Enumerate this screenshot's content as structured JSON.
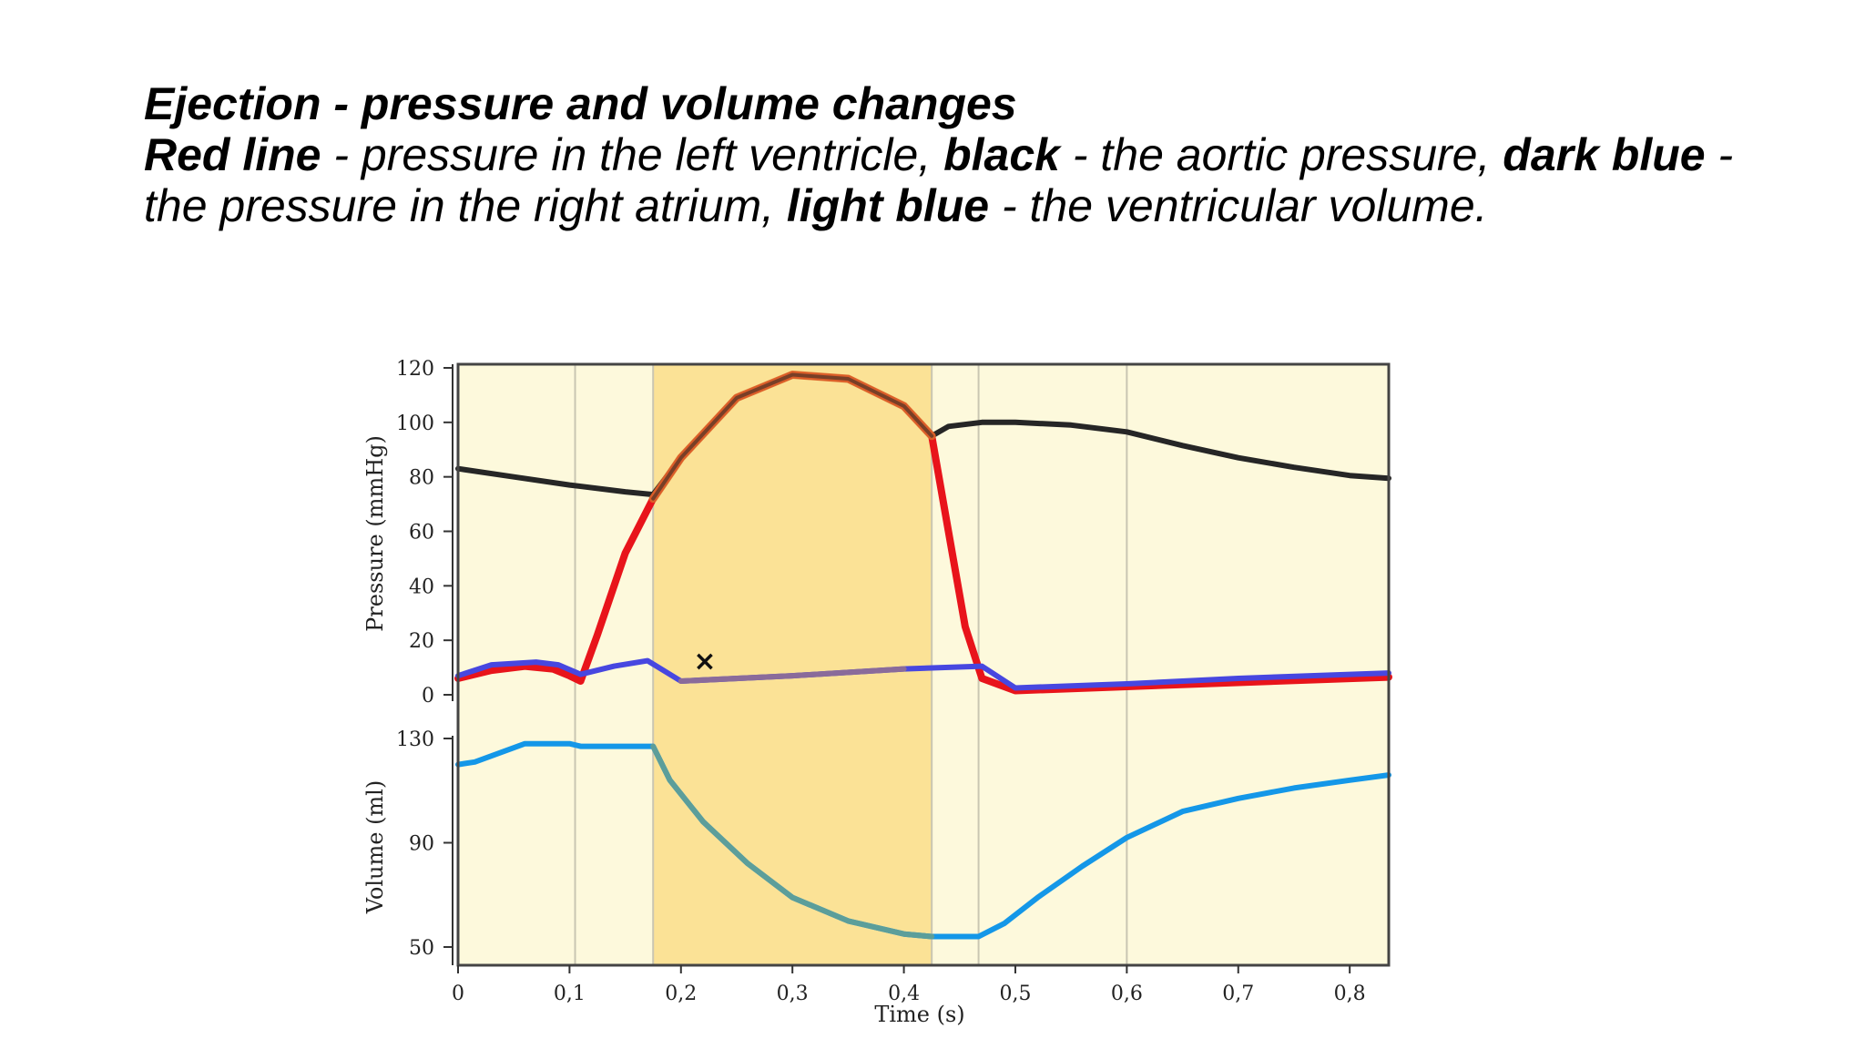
{
  "caption": {
    "heading": "Ejection - pressure and volume changes",
    "s1_bold": "Red line",
    "s1_text": " - pressure in the left ventricle, ",
    "s2_bold": "black",
    "s2_text": " - the aortic pressure, ",
    "s3_bold": "dark blue",
    "s3_text": " - the pressure in the right atrium, ",
    "s4_bold": "light blue",
    "s4_text": " - the ventricular volume."
  },
  "chart_data": {
    "type": "line",
    "xlabel": "Time (s)",
    "xlim": [
      0,
      0.835
    ],
    "x_ticks": [
      "0",
      "0,1",
      "0,2",
      "0,3",
      "0,4",
      "0,5",
      "0,6",
      "0,7",
      "0,8"
    ],
    "x_tick_values": [
      0,
      0.1,
      0.2,
      0.3,
      0.4,
      0.5,
      0.6,
      0.7,
      0.8
    ],
    "phase_boundaries": [
      0.105,
      0.175,
      0.425,
      0.467,
      0.6
    ],
    "highlight_phase": [
      0.175,
      0.425
    ],
    "annotation": "×",
    "colors": {
      "background": "#fdf9dc",
      "highlight": "#fbe296",
      "ventricle": "#e8141b",
      "aorta": "#262626",
      "atrium": "#4747e0",
      "volume": "#1497e8",
      "ejection_overlap": "#d96a2a",
      "volume_overlap": "#5c9e9a"
    },
    "pressure_panel": {
      "ylabel": "Pressure (mmHg)",
      "ylim": [
        0,
        120
      ],
      "y_ticks": [
        0,
        20,
        40,
        60,
        80,
        100,
        120
      ],
      "series": [
        {
          "key": "aorta",
          "x": [
            0,
            0.05,
            0.1,
            0.15,
            0.175,
            0.2,
            0.25,
            0.3,
            0.35,
            0.4,
            0.425,
            0.44,
            0.47,
            0.5,
            0.55,
            0.6,
            0.65,
            0.7,
            0.75,
            0.8,
            0.835
          ],
          "y": [
            83,
            80,
            77,
            74.5,
            73.5,
            87,
            109,
            117.5,
            116,
            106,
            95,
            98.5,
            100,
            100,
            99,
            96.5,
            91.5,
            87,
            83.5,
            80.5,
            79.5
          ]
        },
        {
          "key": "ventricle",
          "x": [
            0,
            0.03,
            0.06,
            0.085,
            0.1,
            0.11,
            0.125,
            0.15,
            0.175,
            0.2,
            0.25,
            0.3,
            0.35,
            0.4,
            0.425,
            0.44,
            0.455,
            0.47,
            0.5,
            0.6,
            0.7,
            0.835
          ],
          "y": [
            6,
            9,
            10.5,
            9.5,
            7,
            5,
            22,
            52,
            72,
            87,
            109,
            117.5,
            116,
            106,
            95,
            60,
            25,
            6,
            1.5,
            3,
            4.5,
            6.5
          ]
        },
        {
          "key": "atrium",
          "x": [
            0,
            0.03,
            0.07,
            0.09,
            0.11,
            0.14,
            0.17,
            0.2,
            0.3,
            0.4,
            0.47,
            0.5,
            0.6,
            0.7,
            0.835
          ],
          "y": [
            7,
            11,
            12,
            11,
            7.5,
            10.5,
            12.5,
            5,
            7,
            9.5,
            10.5,
            2.5,
            4,
            6,
            8
          ]
        }
      ]
    },
    "volume_panel": {
      "ylabel": "Volume (ml)",
      "ylim": [
        50,
        130
      ],
      "y_ticks": [
        50,
        90,
        130
      ],
      "series": [
        {
          "key": "volume",
          "x": [
            0,
            0.015,
            0.06,
            0.1,
            0.11,
            0.175,
            0.19,
            0.22,
            0.26,
            0.3,
            0.35,
            0.4,
            0.425,
            0.467,
            0.49,
            0.52,
            0.56,
            0.6,
            0.65,
            0.7,
            0.75,
            0.8,
            0.835
          ],
          "y": [
            120,
            121,
            128,
            128,
            127,
            127,
            114,
            98,
            82,
            69,
            60,
            55,
            54,
            54,
            59,
            69,
            81,
            92,
            102,
            107,
            111,
            114,
            116
          ]
        }
      ]
    }
  }
}
